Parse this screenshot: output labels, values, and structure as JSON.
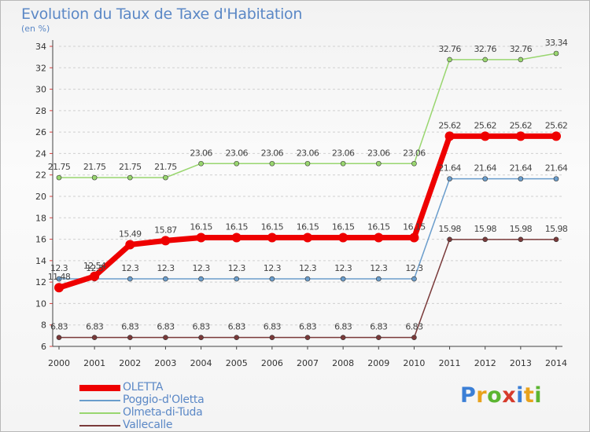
{
  "title": "Evolution du Taux de Taxe d'Habitation",
  "subtitle": "(en %)",
  "logo": {
    "text": "Proxiti",
    "letters": [
      {
        "ch": "P",
        "color": "#3b7fd6"
      },
      {
        "ch": "r",
        "color": "#e8a21c"
      },
      {
        "ch": "o",
        "color": "#5cb531"
      },
      {
        "ch": "x",
        "color": "#d63b2c"
      },
      {
        "ch": "i",
        "color": "#3b7fd6"
      },
      {
        "ch": "t",
        "color": "#e8a21c"
      },
      {
        "ch": "i",
        "color": "#5cb531"
      }
    ]
  },
  "chart_data": {
    "type": "line",
    "title": "Evolution du Taux de Taxe d'Habitation",
    "ylabel": "(en %)",
    "xlabel": "",
    "x": [
      "2000",
      "2001",
      "2002",
      "2003",
      "2004",
      "2005",
      "2006",
      "2007",
      "2008",
      "2009",
      "2010",
      "2011",
      "2012",
      "2013",
      "2014"
    ],
    "ylim": [
      6,
      34
    ],
    "yticks": [
      6,
      8,
      10,
      12,
      14,
      16,
      18,
      20,
      22,
      24,
      26,
      28,
      30,
      32,
      34
    ],
    "grid": "horizontal-dashed",
    "legend_position": "bottom-left",
    "series": [
      {
        "name": "OLETTA",
        "color": "#ee0000",
        "thick": true,
        "values": [
          11.48,
          12.54,
          15.49,
          15.87,
          16.15,
          16.15,
          16.15,
          16.15,
          16.15,
          16.15,
          16.15,
          25.62,
          25.62,
          25.62,
          25.62
        ],
        "labels": [
          "11.48",
          "12.54",
          "15.49",
          "15.87",
          "16.15",
          "16.15",
          "16.15",
          "16.15",
          "16.15",
          "16.15",
          "16.15",
          "25.62",
          "25.62",
          "25.62",
          "25.62"
        ]
      },
      {
        "name": "Poggio-d'Oletta",
        "color": "#6a9dcc",
        "thick": false,
        "values": [
          12.3,
          12.3,
          12.3,
          12.3,
          12.3,
          12.3,
          12.3,
          12.3,
          12.3,
          12.3,
          12.3,
          21.64,
          21.64,
          21.64,
          21.64
        ],
        "labels": [
          "12.3",
          "12.3",
          "12.3",
          "12.3",
          "12.3",
          "12.3",
          "12.3",
          "12.3",
          "12.3",
          "12.3",
          "12.3",
          "21.64",
          "21.64",
          "21.64",
          "21.64"
        ]
      },
      {
        "name": "Olmeta-di-Tuda",
        "color": "#99d66f",
        "thick": false,
        "values": [
          21.75,
          21.75,
          21.75,
          21.75,
          23.06,
          23.06,
          23.06,
          23.06,
          23.06,
          23.06,
          23.06,
          32.76,
          32.76,
          32.76,
          33.34
        ],
        "labels": [
          "21.75",
          "21.75",
          "21.75",
          "21.75",
          "23.06",
          "23.06",
          "23.06",
          "23.06",
          "23.06",
          "23.06",
          "23.06",
          "32.76",
          "32.76",
          "32.76",
          "33.34"
        ]
      },
      {
        "name": "Vallecalle",
        "color": "#7a3a3a",
        "thick": false,
        "values": [
          6.83,
          6.83,
          6.83,
          6.83,
          6.83,
          6.83,
          6.83,
          6.83,
          6.83,
          6.83,
          6.83,
          15.98,
          15.98,
          15.98,
          15.98
        ],
        "labels": [
          "6.83",
          "6.83",
          "6.83",
          "6.83",
          "6.83",
          "6.83",
          "6.83",
          "6.83",
          "6.83",
          "6.83",
          "6.83",
          "15.98",
          "15.98",
          "15.98",
          "15.98"
        ]
      }
    ]
  }
}
